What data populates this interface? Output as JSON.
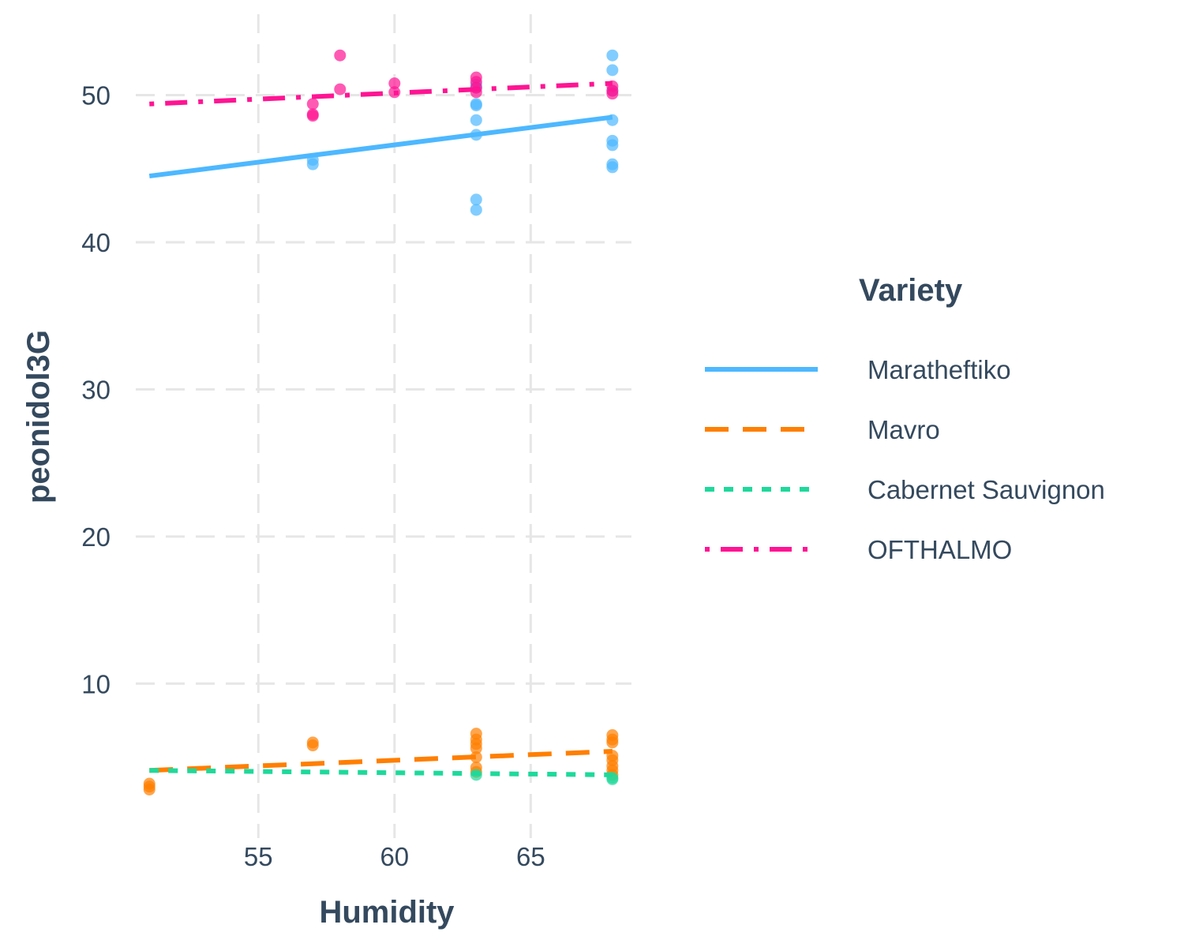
{
  "chart_data": {
    "type": "scatter",
    "xlabel": "Humidity",
    "ylabel": "peonidol3G",
    "xlim": [
      50.5,
      68.7
    ],
    "ylim": [
      -0.5,
      55.5
    ],
    "x_ticks": [
      55,
      60,
      65
    ],
    "y_ticks": [
      10,
      20,
      30,
      40,
      50
    ],
    "grid": true,
    "legend_position": "right",
    "legend_title": "Variety",
    "series": [
      {
        "name": "Maratheftiko",
        "color": "#4db8ff",
        "line_style": "solid",
        "points": [
          [
            57,
            45.6
          ],
          [
            57,
            45.3
          ],
          [
            63,
            42.9
          ],
          [
            63,
            42.2
          ],
          [
            63,
            47.3
          ],
          [
            63,
            48.3
          ],
          [
            63,
            49.3
          ],
          [
            63,
            49.4
          ],
          [
            63,
            50.5
          ],
          [
            63,
            50.7
          ],
          [
            68,
            52.7
          ],
          [
            68,
            51.7
          ],
          [
            68,
            48.3
          ],
          [
            68,
            46.9
          ],
          [
            68,
            46.6
          ],
          [
            68,
            45.3
          ],
          [
            68,
            45.1
          ],
          [
            68,
            50.3
          ]
        ],
        "fit": [
          [
            51,
            44.5
          ],
          [
            68,
            48.5
          ]
        ]
      },
      {
        "name": "Mavro",
        "color": "#ff7f00",
        "line_style": "dashed",
        "points": [
          [
            51,
            3.2
          ],
          [
            51,
            3.0
          ],
          [
            51,
            2.8
          ],
          [
            57,
            6.0
          ],
          [
            57,
            5.8
          ],
          [
            63,
            6.6
          ],
          [
            63,
            6.2
          ],
          [
            63,
            5.9
          ],
          [
            63,
            5.6
          ],
          [
            63,
            5.0
          ],
          [
            63,
            4.3
          ],
          [
            63,
            4.0
          ],
          [
            68,
            6.5
          ],
          [
            68,
            6.2
          ],
          [
            68,
            6.0
          ],
          [
            68,
            5.1
          ],
          [
            68,
            4.8
          ],
          [
            68,
            4.4
          ],
          [
            68,
            4.1
          ],
          [
            68,
            3.8
          ]
        ],
        "fit": [
          [
            51,
            4.1
          ],
          [
            68,
            5.4
          ]
        ]
      },
      {
        "name": "Cabernet Sauvignon",
        "color": "#1ed99b",
        "line_style": "dotted",
        "points": [
          [
            63,
            3.8
          ],
          [
            68,
            3.6
          ],
          [
            68,
            3.5
          ]
        ],
        "fit": [
          [
            51,
            4.1
          ],
          [
            68,
            3.8
          ]
        ]
      },
      {
        "name": "OFTHALMO",
        "color": "#ff1493",
        "line_style": "dotdash",
        "points": [
          [
            57,
            49.4
          ],
          [
            57,
            48.7
          ],
          [
            57,
            48.6
          ],
          [
            58,
            52.7
          ],
          [
            58,
            50.4
          ],
          [
            60,
            50.8
          ],
          [
            60,
            50.2
          ],
          [
            63,
            51.2
          ],
          [
            63,
            50.9
          ],
          [
            63,
            50.5
          ],
          [
            63,
            50.2
          ],
          [
            68,
            50.6
          ],
          [
            68,
            50.3
          ],
          [
            68,
            50.1
          ]
        ],
        "fit": [
          [
            51,
            49.4
          ],
          [
            68,
            50.8
          ]
        ]
      }
    ]
  }
}
